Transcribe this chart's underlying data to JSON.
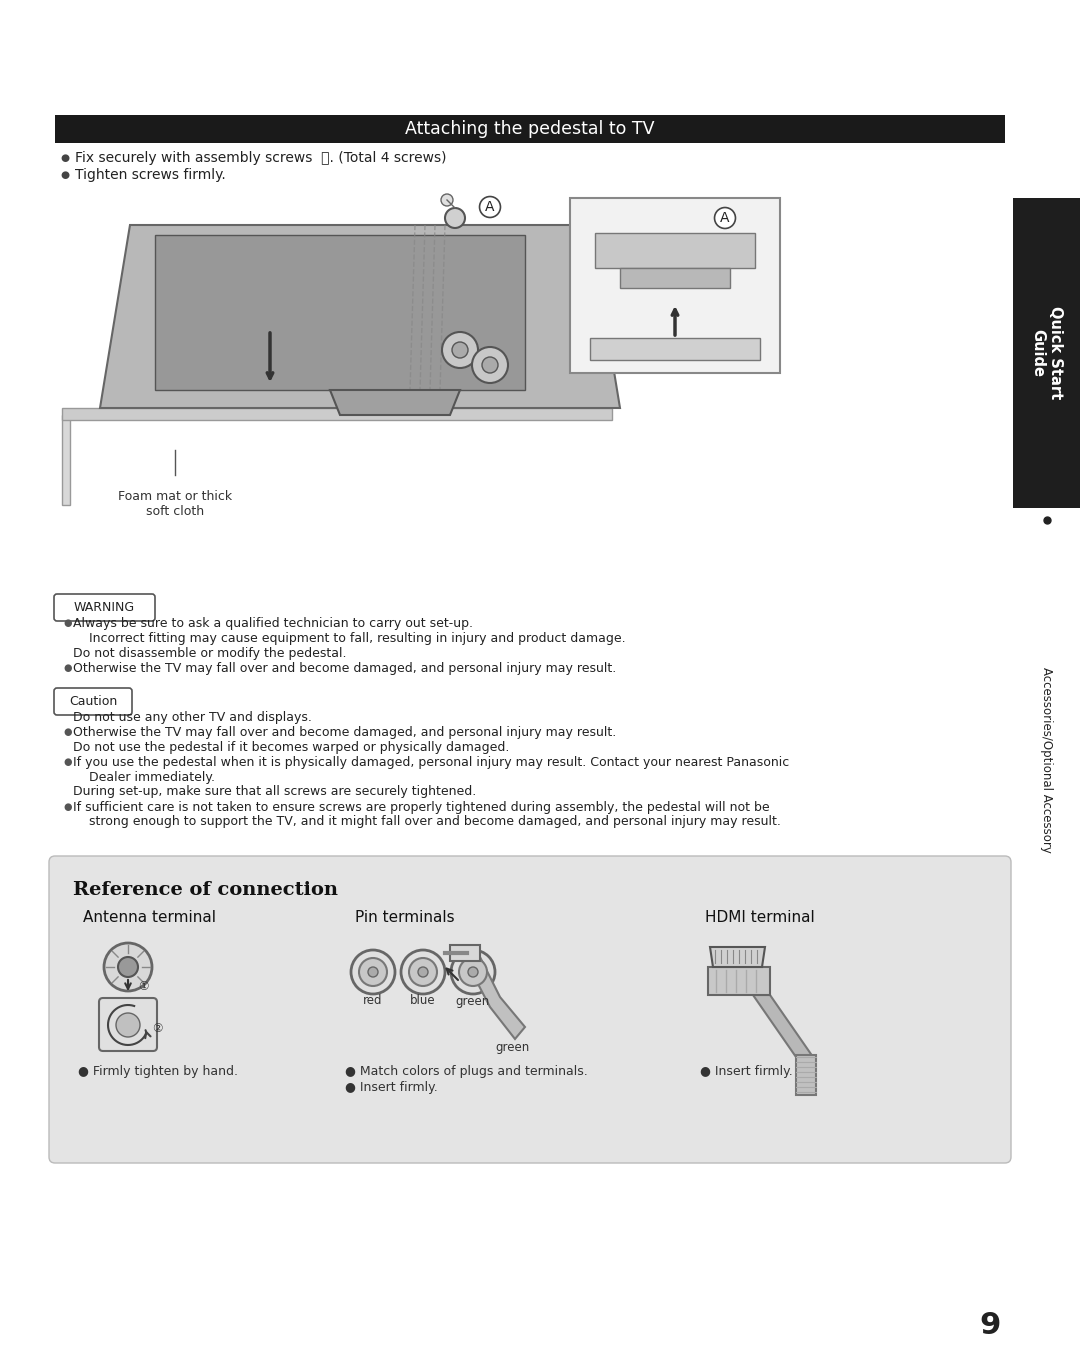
{
  "bg_color": "#ffffff",
  "page_number": "9",
  "title_bar_color": "#1a1a1a",
  "title_text": "Attaching the pedestal to TV",
  "title_text_color": "#ffffff",
  "bullet_color": "#555555",
  "body_text_color": "#222222",
  "sidebar_bg": "#2a2a2a",
  "warning_label": "WARNING",
  "caution_label": "Caution",
  "bullet1": "Fix securely with assembly screws  Ⓐ. (Total 4 screws)",
  "bullet2": "Tighten screws firmly.",
  "foam_label": "Foam mat or thick\nsoft cloth",
  "ref_title": "Reference of connection",
  "ref_bg": "#e4e4e4",
  "antenna_title": "Antenna terminal",
  "antenna_note": "● Firmly tighten by hand.",
  "pin_title": "Pin terminals",
  "pin_labels": [
    "red",
    "blue",
    "green"
  ],
  "pin_note1": "● Match colors of plugs and terminals.",
  "pin_note2": "● Insert firmly.",
  "hdmi_title": "HDMI terminal",
  "hdmi_note": "● Insert firmly.",
  "green_label": "green",
  "warn_lines": [
    [
      true,
      "Always be sure to ask a qualified technician to carry out set-up."
    ],
    [
      false,
      "    Incorrect fitting may cause equipment to fall, resulting in injury and product damage."
    ],
    [
      false,
      "Do not disassemble or modify the pedestal."
    ],
    [
      true,
      "Otherwise the TV may fall over and become damaged, and personal injury may result."
    ]
  ],
  "caut_lines": [
    [
      false,
      "Do not use any other TV and displays."
    ],
    [
      true,
      "Otherwise the TV may fall over and become damaged, and personal injury may result."
    ],
    [
      false,
      "Do not use the pedestal if it becomes warped or physically damaged."
    ],
    [
      true,
      "If you use the pedestal when it is physically damaged, personal injury may result. Contact your nearest Panasonic"
    ],
    [
      false,
      "    Dealer immediately."
    ],
    [
      false,
      "During set-up, make sure that all screws are securely tightened."
    ],
    [
      true,
      "If sufficient care is not taken to ensure screws are properly tightened during assembly, the pedestal will not be"
    ],
    [
      false,
      "    strong enough to support the TV, and it might fall over and become damaged, and personal injury may result."
    ]
  ]
}
